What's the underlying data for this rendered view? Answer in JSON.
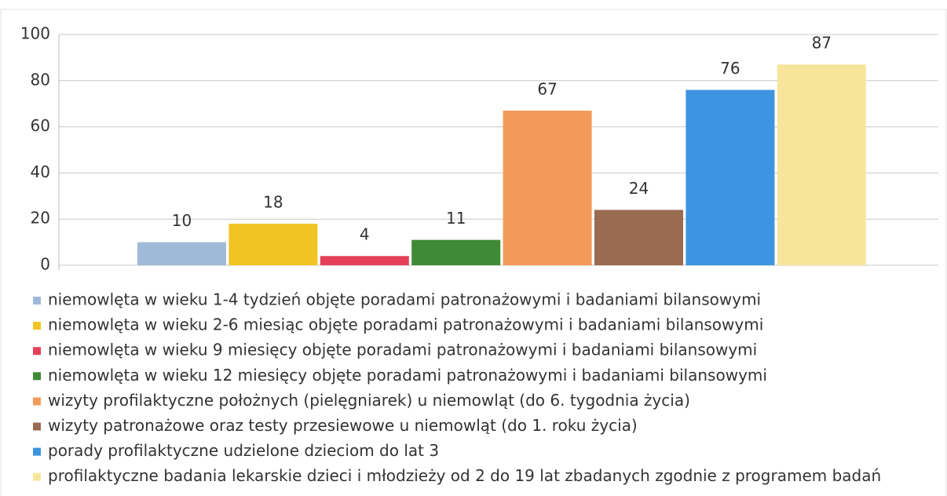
{
  "chart_data": {
    "type": "bar",
    "series": [
      {
        "name": "niemowlęta w wieku 1-4 tydzień objęte poradami patronażowymi i badaniami bilansowymi",
        "color": "#9fbad6",
        "values": [
          10
        ]
      },
      {
        "name": "niemowlęta w wieku 2-6 miesiąc objęte poradami patronażowymi i badaniami bilansowymi",
        "color": "#f2c324",
        "values": [
          18
        ]
      },
      {
        "name": "niemowlęta w wieku 9 miesięcy objęte poradami patronażowymi i badaniami bilansowymi",
        "color": "#e5405a",
        "values": [
          4
        ]
      },
      {
        "name": "niemowlęta w wieku 12 miesięcy objęte poradami patronażowymi i badaniami bilansowymi",
        "color": "#3f8a34",
        "values": [
          11
        ]
      },
      {
        "name": "wizyty profilaktyczne położnych (pielęgniarek) u niemowląt (do 6. tygodnia życia)",
        "color": "#f3995a",
        "values": [
          67
        ]
      },
      {
        "name": "wizyty patronażowe oraz testy przesiewowe u niemowląt (do 1. roku życia)",
        "color": "#9a6b51",
        "values": [
          24
        ]
      },
      {
        "name": "porady profilaktyczne udzielone dzieciom do lat 3",
        "color": "#3d94e0",
        "values": [
          76
        ]
      },
      {
        "name": "profilaktyczne badania lekarskie dzieci i młodzieży od 2 do 19 lat zbadanych zgodnie z programem badań",
        "color": "#f8e59c",
        "values": [
          87
        ]
      }
    ],
    "ylim": [
      0,
      100
    ],
    "yticks": [
      0,
      20,
      40,
      60,
      80,
      100
    ],
    "grid": true
  }
}
